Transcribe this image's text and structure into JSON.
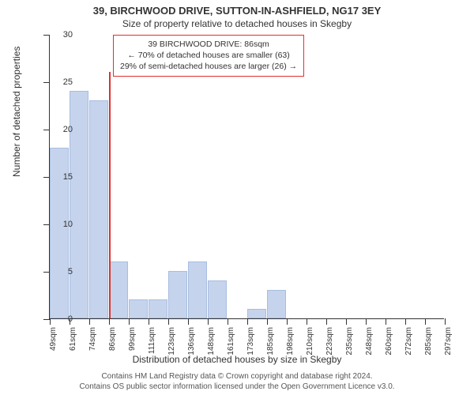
{
  "title": "39, BIRCHWOOD DRIVE, SUTTON-IN-ASHFIELD, NG17 3EY",
  "subtitle": "Size of property relative to detached houses in Skegby",
  "y_axis": {
    "label": "Number of detached properties",
    "min": 0,
    "max": 30,
    "ticks": [
      0,
      5,
      10,
      15,
      20,
      25,
      30
    ]
  },
  "x_axis": {
    "label": "Distribution of detached houses by size in Skegby",
    "tick_labels": [
      "49sqm",
      "61sqm",
      "74sqm",
      "86sqm",
      "99sqm",
      "111sqm",
      "123sqm",
      "136sqm",
      "148sqm",
      "161sqm",
      "173sqm",
      "185sqm",
      "198sqm",
      "210sqm",
      "223sqm",
      "235sqm",
      "248sqm",
      "260sqm",
      "272sqm",
      "285sqm",
      "297sqm"
    ]
  },
  "bars": {
    "values": [
      18,
      24,
      23,
      6,
      2,
      2,
      5,
      6,
      4,
      0,
      1,
      3,
      0,
      0,
      0,
      0,
      0,
      0,
      0,
      0
    ],
    "color": "#c5d4ec",
    "border_color": "#a8bde0"
  },
  "marker": {
    "bin_index": 3,
    "color": "#e03030",
    "height_value": 26
  },
  "callout": {
    "line1": "39 BIRCHWOOD DRIVE: 86sqm",
    "line2": "← 70% of detached houses are smaller (63)",
    "line3": "29% of semi-detached houses are larger (26) →",
    "border_color": "#e03030"
  },
  "footer": {
    "line1": "Contains HM Land Registry data © Crown copyright and database right 2024.",
    "line2": "Contains OS public sector information licensed under the Open Government Licence v3.0."
  },
  "style": {
    "background_color": "#ffffff",
    "axis_color": "#333333",
    "title_fontsize": 13,
    "subtitle_fontsize": 12,
    "axis_label_fontsize": 12,
    "tick_fontsize": 11,
    "footer_fontsize": 10
  }
}
